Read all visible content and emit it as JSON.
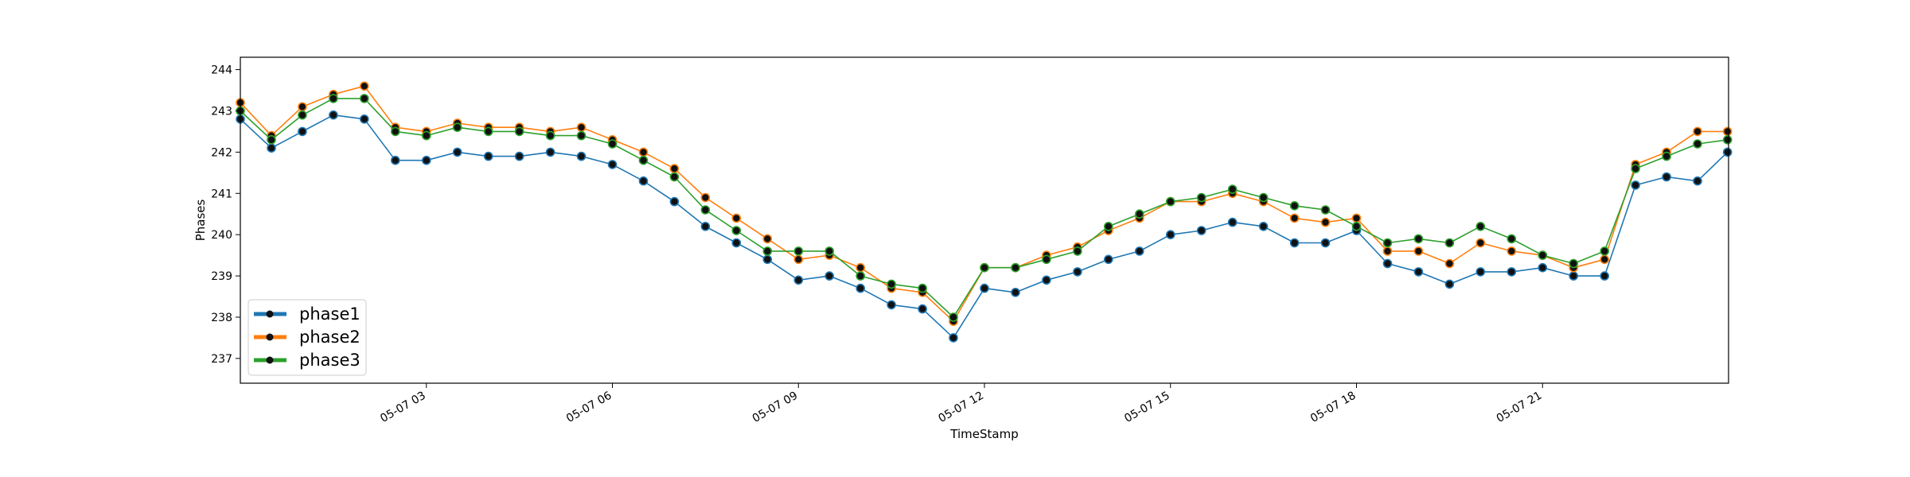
{
  "chart_data": {
    "type": "line",
    "title": "",
    "xlabel": "TimeStamp",
    "ylabel": "Phases",
    "xlim": [
      "2019-05-07 00:00",
      "2019-05-07 23:59"
    ],
    "ylim": [
      236.4,
      244.3
    ],
    "x_ticks": [
      "05-07 03",
      "05-07 06",
      "05-07 09",
      "05-07 12",
      "05-07 15",
      "05-07 18",
      "05-07 21"
    ],
    "y_ticks": [
      "237",
      "238",
      "239",
      "240",
      "241",
      "242",
      "243",
      "244"
    ],
    "grid": false,
    "legend_position": "lower-left",
    "x": [
      "00:00",
      "00:30",
      "01:00",
      "01:30",
      "02:00",
      "02:30",
      "03:00",
      "03:30",
      "04:00",
      "04:30",
      "05:00",
      "05:30",
      "06:00",
      "06:30",
      "07:00",
      "07:30",
      "08:00",
      "08:30",
      "09:00",
      "09:30",
      "10:00",
      "10:30",
      "11:00",
      "11:30",
      "12:00",
      "12:30",
      "13:00",
      "13:30",
      "14:00",
      "14:30",
      "15:00",
      "15:30",
      "16:00",
      "16:30",
      "17:00",
      "17:30",
      "18:00",
      "18:30",
      "19:00",
      "19:30",
      "20:00",
      "20:30",
      "21:00",
      "21:30",
      "22:00",
      "22:30",
      "23:00",
      "23:30",
      "23:59"
    ],
    "series": [
      {
        "name": "phase1",
        "color": "#1f77b4",
        "values": [
          242.8,
          242.1,
          242.5,
          242.9,
          242.8,
          241.8,
          241.8,
          242.0,
          241.9,
          241.9,
          242.0,
          241.9,
          241.7,
          241.3,
          240.8,
          240.2,
          239.8,
          239.4,
          238.9,
          239.0,
          238.7,
          238.3,
          238.2,
          237.5,
          238.7,
          238.6,
          238.9,
          239.1,
          239.4,
          239.6,
          240.0,
          240.1,
          240.3,
          240.2,
          239.8,
          239.8,
          240.1,
          239.3,
          239.1,
          238.8,
          239.1,
          239.1,
          239.2,
          239.0,
          239.0,
          241.2,
          241.4,
          241.3,
          242.0
        ]
      },
      {
        "name": "phase2",
        "color": "#ff7f0e",
        "values": [
          243.2,
          242.4,
          243.1,
          243.4,
          243.6,
          242.6,
          242.5,
          242.7,
          242.6,
          242.6,
          242.5,
          242.6,
          242.3,
          242.0,
          241.6,
          240.9,
          240.4,
          239.9,
          239.4,
          239.5,
          239.2,
          238.7,
          238.6,
          237.9,
          239.2,
          239.2,
          239.5,
          239.7,
          240.1,
          240.4,
          240.8,
          240.8,
          241.0,
          240.8,
          240.4,
          240.3,
          240.4,
          239.6,
          239.6,
          239.3,
          239.8,
          239.6,
          239.5,
          239.2,
          239.4,
          241.7,
          242.0,
          242.5,
          242.5
        ]
      },
      {
        "name": "phase3",
        "color": "#2ca02c",
        "values": [
          243.0,
          242.3,
          242.9,
          243.3,
          243.3,
          242.5,
          242.4,
          242.6,
          242.5,
          242.5,
          242.4,
          242.4,
          242.2,
          241.8,
          241.4,
          240.6,
          240.1,
          239.6,
          239.6,
          239.6,
          239.0,
          238.8,
          238.7,
          238.0,
          239.2,
          239.2,
          239.4,
          239.6,
          240.2,
          240.5,
          240.8,
          240.9,
          241.1,
          240.9,
          240.7,
          240.6,
          240.2,
          239.8,
          239.9,
          239.8,
          240.2,
          239.9,
          239.5,
          239.3,
          239.6,
          241.6,
          241.9,
          242.2,
          242.3
        ]
      }
    ]
  }
}
